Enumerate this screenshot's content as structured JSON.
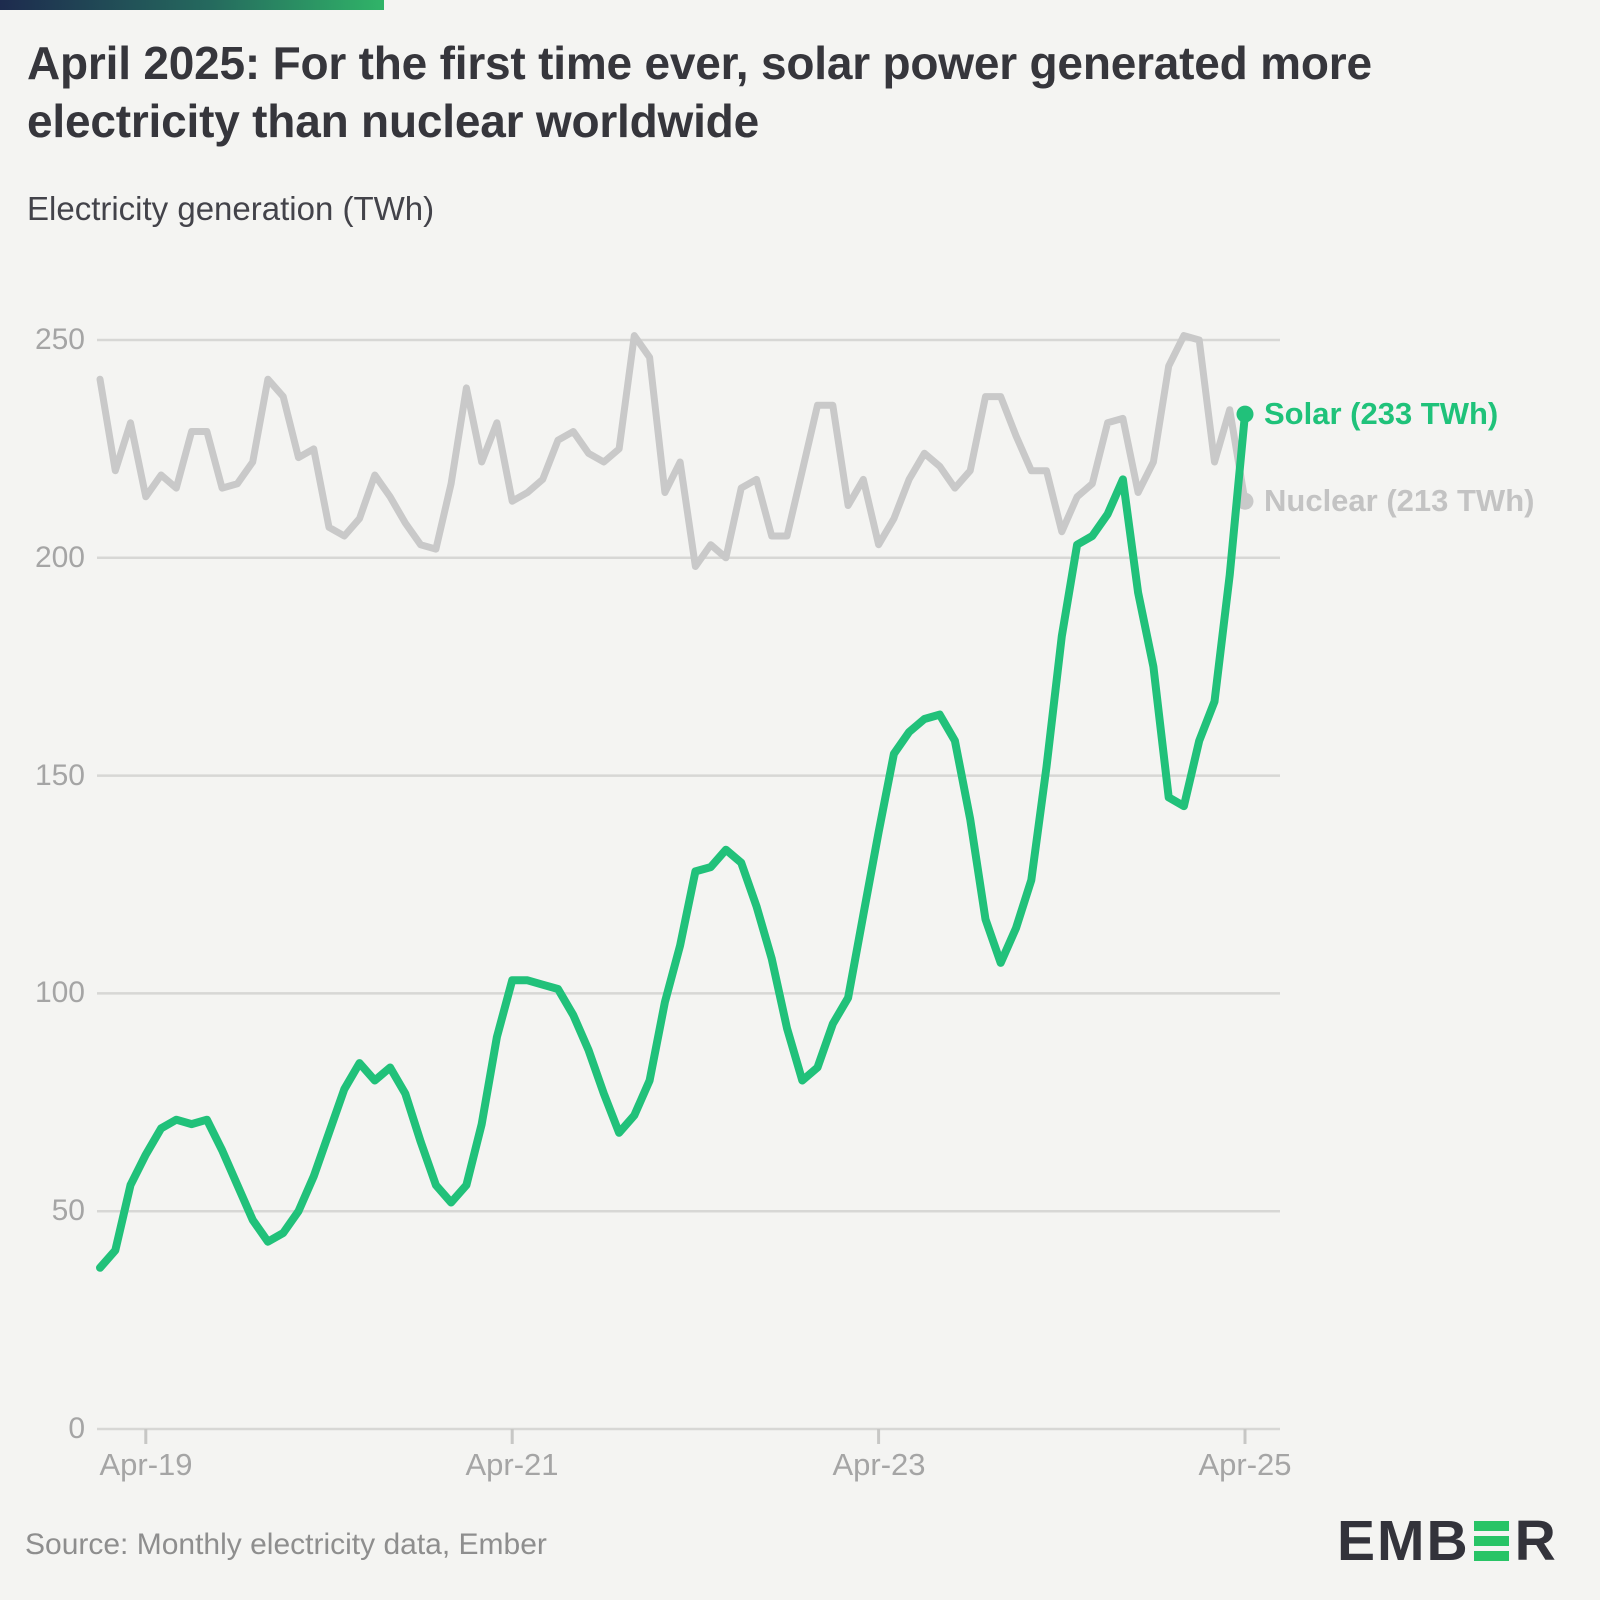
{
  "header": {
    "title": "April 2025: For the first time ever, solar power generated more electricity than nuclear worldwide",
    "subtitle": "Electricity generation (TWh)"
  },
  "chart_data": {
    "type": "line",
    "title": "April 2025: For the first time ever, solar power generated more electricity than nuclear worldwide",
    "ylabel": "Electricity generation (TWh)",
    "x_range": "Jan-2019 to Apr-2025, monthly",
    "n_points": 76,
    "x_tick_labels": [
      "Apr-19",
      "Apr-21",
      "Apr-23",
      "Apr-25"
    ],
    "x_tick_month_indices": [
      3,
      27,
      51,
      75
    ],
    "y_ticks": [
      0,
      50,
      100,
      150,
      200,
      250
    ],
    "y_tick_labels": [
      "250",
      "200",
      "150",
      "100",
      "50",
      "0"
    ],
    "ylim": [
      0,
      255
    ],
    "grid": true,
    "legend_position": "end-of-line-labels",
    "colors": {
      "solar": "#21c17a",
      "nuclear": "#c9c9c9",
      "grid": "#d7d7d5",
      "axis_text": "#a5a5a5",
      "background": "#f4f4f2"
    },
    "series": [
      {
        "name": "Solar",
        "final_label": "Solar (233 TWh)",
        "final_value_twh": 233,
        "color": "#21c17a",
        "width": 8,
        "values": [
          37,
          41,
          56,
          63,
          69,
          71,
          70,
          71,
          64,
          56,
          48,
          43,
          45,
          50,
          58,
          68,
          78,
          84,
          80,
          83,
          77,
          66,
          56,
          52,
          56,
          70,
          90,
          103,
          103,
          102,
          101,
          95,
          87,
          77,
          68,
          72,
          80,
          98,
          111,
          128,
          129,
          133,
          130,
          120,
          108,
          92,
          80,
          83,
          93,
          99,
          118,
          137,
          155,
          160,
          163,
          164,
          158,
          140,
          117,
          107,
          115,
          126,
          152,
          182,
          203,
          205,
          210,
          218,
          192,
          175,
          145,
          143,
          158,
          167,
          196,
          233
        ]
      },
      {
        "name": "Nuclear",
        "final_label": "Nuclear (213 TWh)",
        "final_value_twh": 213,
        "color": "#c9c9c9",
        "width": 7,
        "values": [
          241,
          220,
          231,
          214,
          219,
          216,
          229,
          229,
          216,
          217,
          222,
          241,
          237,
          223,
          225,
          207,
          205,
          209,
          219,
          214,
          208,
          203,
          202,
          217,
          239,
          222,
          231,
          213,
          215,
          218,
          227,
          229,
          224,
          222,
          225,
          251,
          246,
          215,
          222,
          198,
          203,
          200,
          216,
          218,
          205,
          205,
          220,
          235,
          235,
          212,
          218,
          203,
          209,
          218,
          224,
          221,
          216,
          220,
          237,
          237,
          228,
          220,
          220,
          206,
          214,
          217,
          231,
          232,
          215,
          222,
          244,
          251,
          250,
          222,
          234,
          213
        ]
      }
    ]
  },
  "footer": {
    "source": "Source: Monthly electricity data, Ember",
    "logo": {
      "part1": "EMB",
      "part2": "R"
    }
  }
}
